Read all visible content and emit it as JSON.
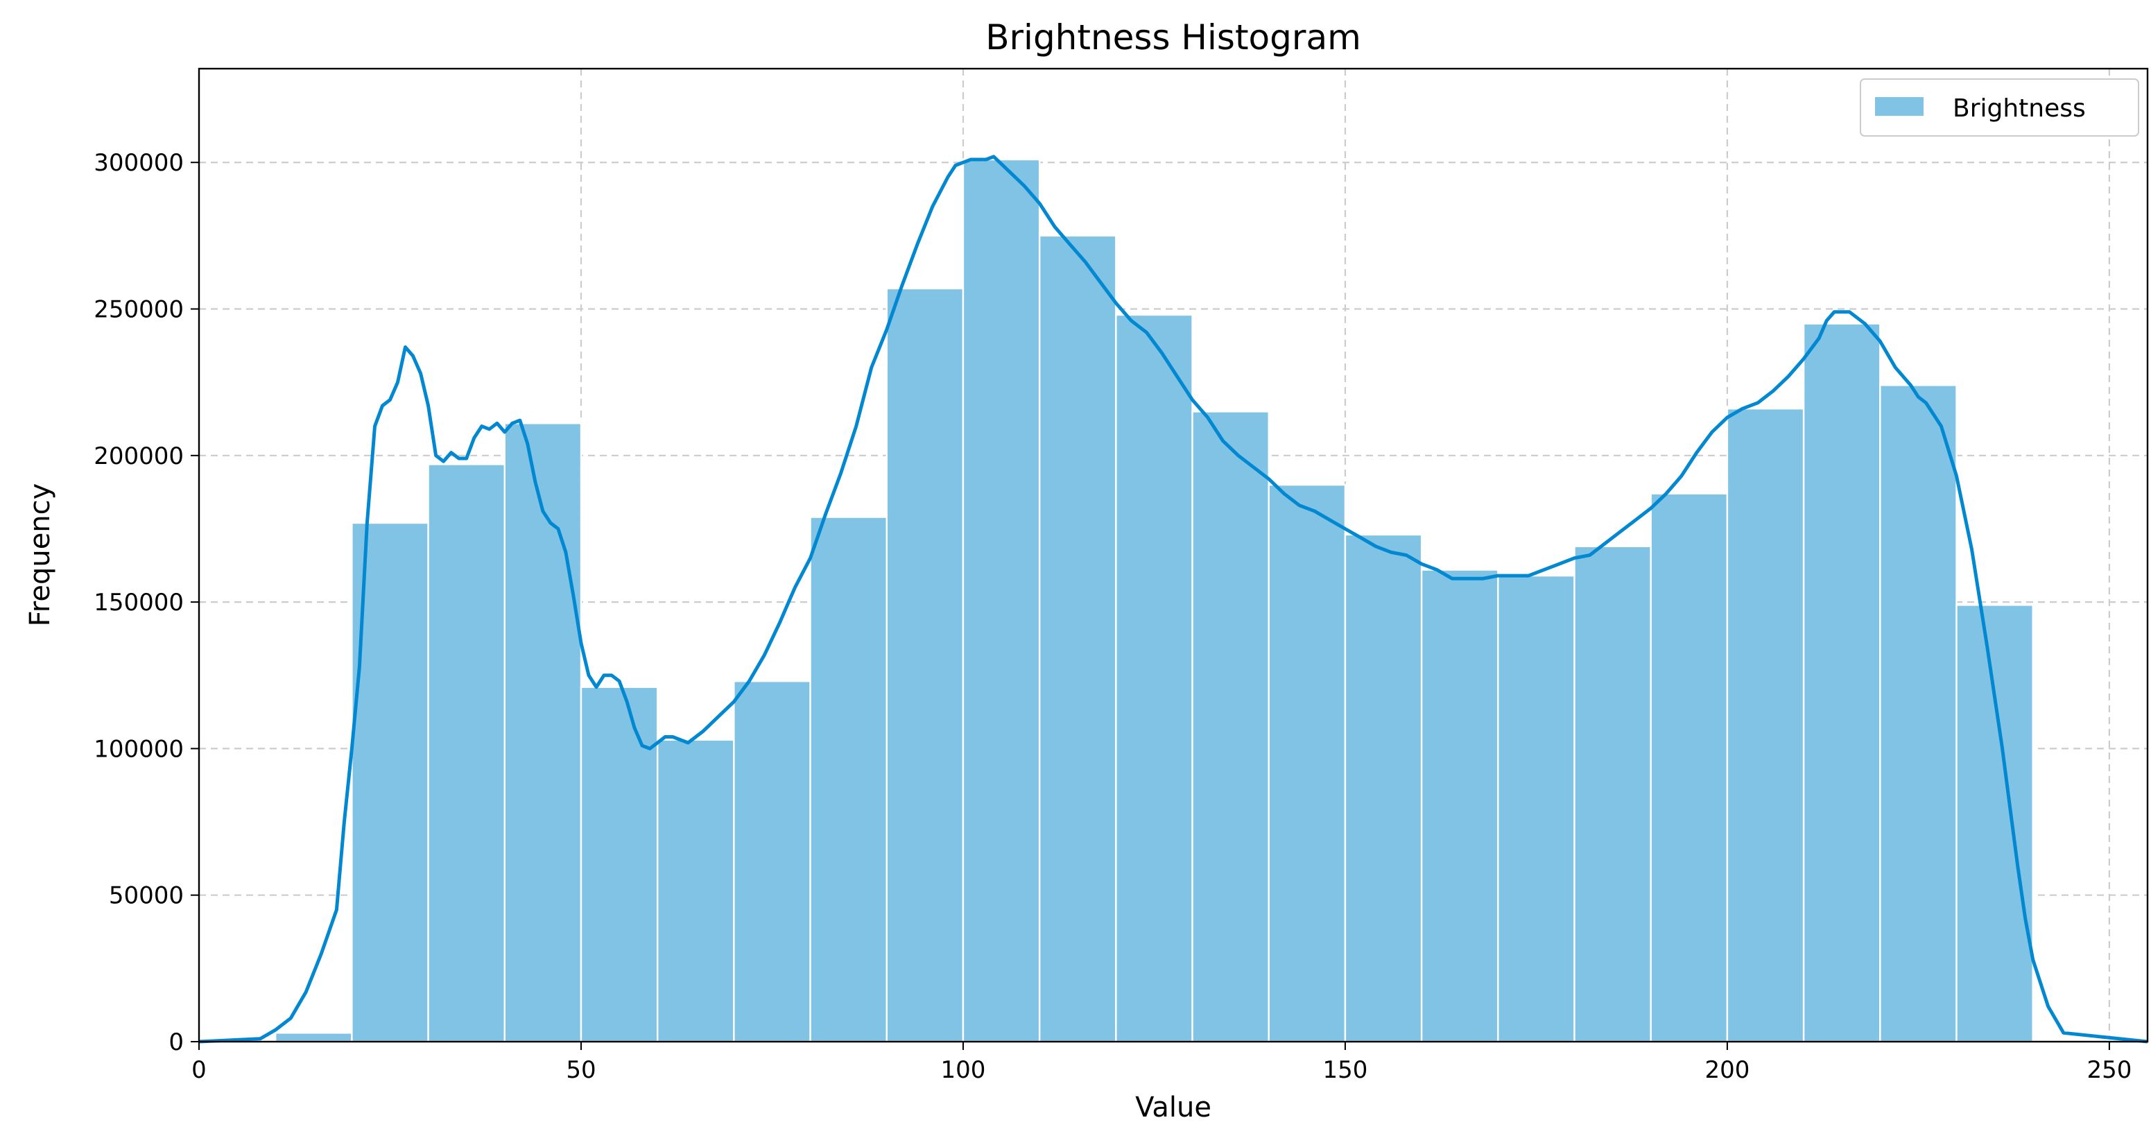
{
  "chart_data": {
    "type": "bar",
    "title": "Brightness Histogram",
    "xlabel": "Value",
    "ylabel": "Frequency",
    "xlim": [
      0,
      255
    ],
    "ylim": [
      0,
      332000
    ],
    "grid": true,
    "legend_position": "top-right",
    "bar_color": "#81c3e5",
    "line_color": "#0288d1",
    "x_ticks": [
      0,
      50,
      100,
      150,
      200,
      250
    ],
    "x_tick_labels": [
      "0",
      "50",
      "100",
      "150",
      "200",
      "250"
    ],
    "y_ticks": [
      0,
      50000,
      100000,
      150000,
      200000,
      250000,
      300000
    ],
    "y_tick_labels": [
      "0",
      "50000",
      "100000",
      "150000",
      "200000",
      "250000",
      "300000"
    ],
    "series": [
      {
        "name": "Brightness",
        "bin_edges": [
          0,
          10,
          20,
          30,
          40,
          50,
          60,
          70,
          80,
          90,
          100,
          110,
          120,
          130,
          140,
          150,
          160,
          170,
          180,
          190,
          200,
          210,
          220,
          230,
          240,
          250,
          255
        ],
        "values": [
          200,
          3000,
          177000,
          197000,
          211000,
          121000,
          103000,
          123000,
          179000,
          257000,
          301000,
          275000,
          248000,
          215000,
          190000,
          173000,
          161000,
          159000,
          169000,
          187000,
          216000,
          245000,
          224000,
          149000,
          500,
          0
        ]
      },
      {
        "x": [
          0,
          8,
          10,
          12,
          14,
          16,
          18,
          19,
          20,
          21,
          22,
          23,
          24,
          25,
          26,
          27,
          28,
          29,
          30,
          31,
          32,
          33,
          34,
          35,
          36,
          37,
          38,
          39,
          40,
          41,
          42,
          43,
          44,
          45,
          46,
          47,
          48,
          49,
          50,
          51,
          52,
          53,
          54,
          55,
          56,
          57,
          58,
          59,
          60,
          61,
          62,
          64,
          66,
          68,
          70,
          72,
          74,
          76,
          77,
          78,
          80,
          82,
          84,
          86,
          88,
          90,
          92,
          94,
          96,
          98,
          99,
          100,
          101,
          102,
          103,
          104,
          106,
          108,
          110,
          112,
          114,
          116,
          118,
          120,
          122,
          124,
          126,
          128,
          130,
          132,
          134,
          136,
          138,
          140,
          142,
          144,
          146,
          148,
          150,
          152,
          154,
          156,
          158,
          160,
          162,
          164,
          166,
          168,
          170,
          172,
          174,
          176,
          178,
          180,
          182,
          184,
          186,
          188,
          190,
          192,
          194,
          196,
          198,
          200,
          202,
          204,
          206,
          208,
          210,
          212,
          213,
          214,
          216,
          218,
          220,
          222,
          224,
          225,
          226,
          228,
          230,
          232,
          234,
          236,
          237,
          238,
          239,
          240,
          242,
          244,
          255
        ],
        "y": [
          0,
          1000,
          4000,
          8000,
          17000,
          30000,
          45000,
          75000,
          100000,
          128000,
          177000,
          210000,
          217000,
          219000,
          225000,
          237000,
          234000,
          228000,
          217000,
          200000,
          198000,
          201000,
          199000,
          199000,
          206000,
          210000,
          209000,
          211000,
          208000,
          211000,
          212000,
          204000,
          191000,
          181000,
          177000,
          175000,
          167000,
          152000,
          136000,
          125000,
          121000,
          125000,
          125000,
          123000,
          116000,
          107000,
          101000,
          100000,
          102000,
          104000,
          104000,
          102000,
          106000,
          111000,
          116000,
          123000,
          132000,
          143000,
          149000,
          155000,
          165000,
          180000,
          194000,
          210000,
          230000,
          243000,
          258000,
          272000,
          285000,
          295000,
          299000,
          300000,
          301000,
          301000,
          301000,
          302000,
          297000,
          292000,
          286000,
          278000,
          272000,
          266000,
          259000,
          252000,
          246000,
          242000,
          235000,
          227000,
          219000,
          213000,
          205000,
          200000,
          196000,
          192000,
          187000,
          183000,
          181000,
          178000,
          175000,
          172000,
          169000,
          167000,
          166000,
          163000,
          161000,
          158000,
          158000,
          158000,
          159000,
          159000,
          159000,
          161000,
          163000,
          165000,
          166000,
          170000,
          174000,
          178000,
          182000,
          187000,
          193000,
          201000,
          208000,
          213000,
          216000,
          218000,
          222000,
          227000,
          233000,
          240000,
          246000,
          249000,
          249000,
          245000,
          239000,
          230000,
          224000,
          220000,
          218000,
          210000,
          193000,
          168000,
          135000,
          100000,
          80000,
          60000,
          42000,
          28000,
          12000,
          3000,
          0
        ]
      }
    ]
  }
}
